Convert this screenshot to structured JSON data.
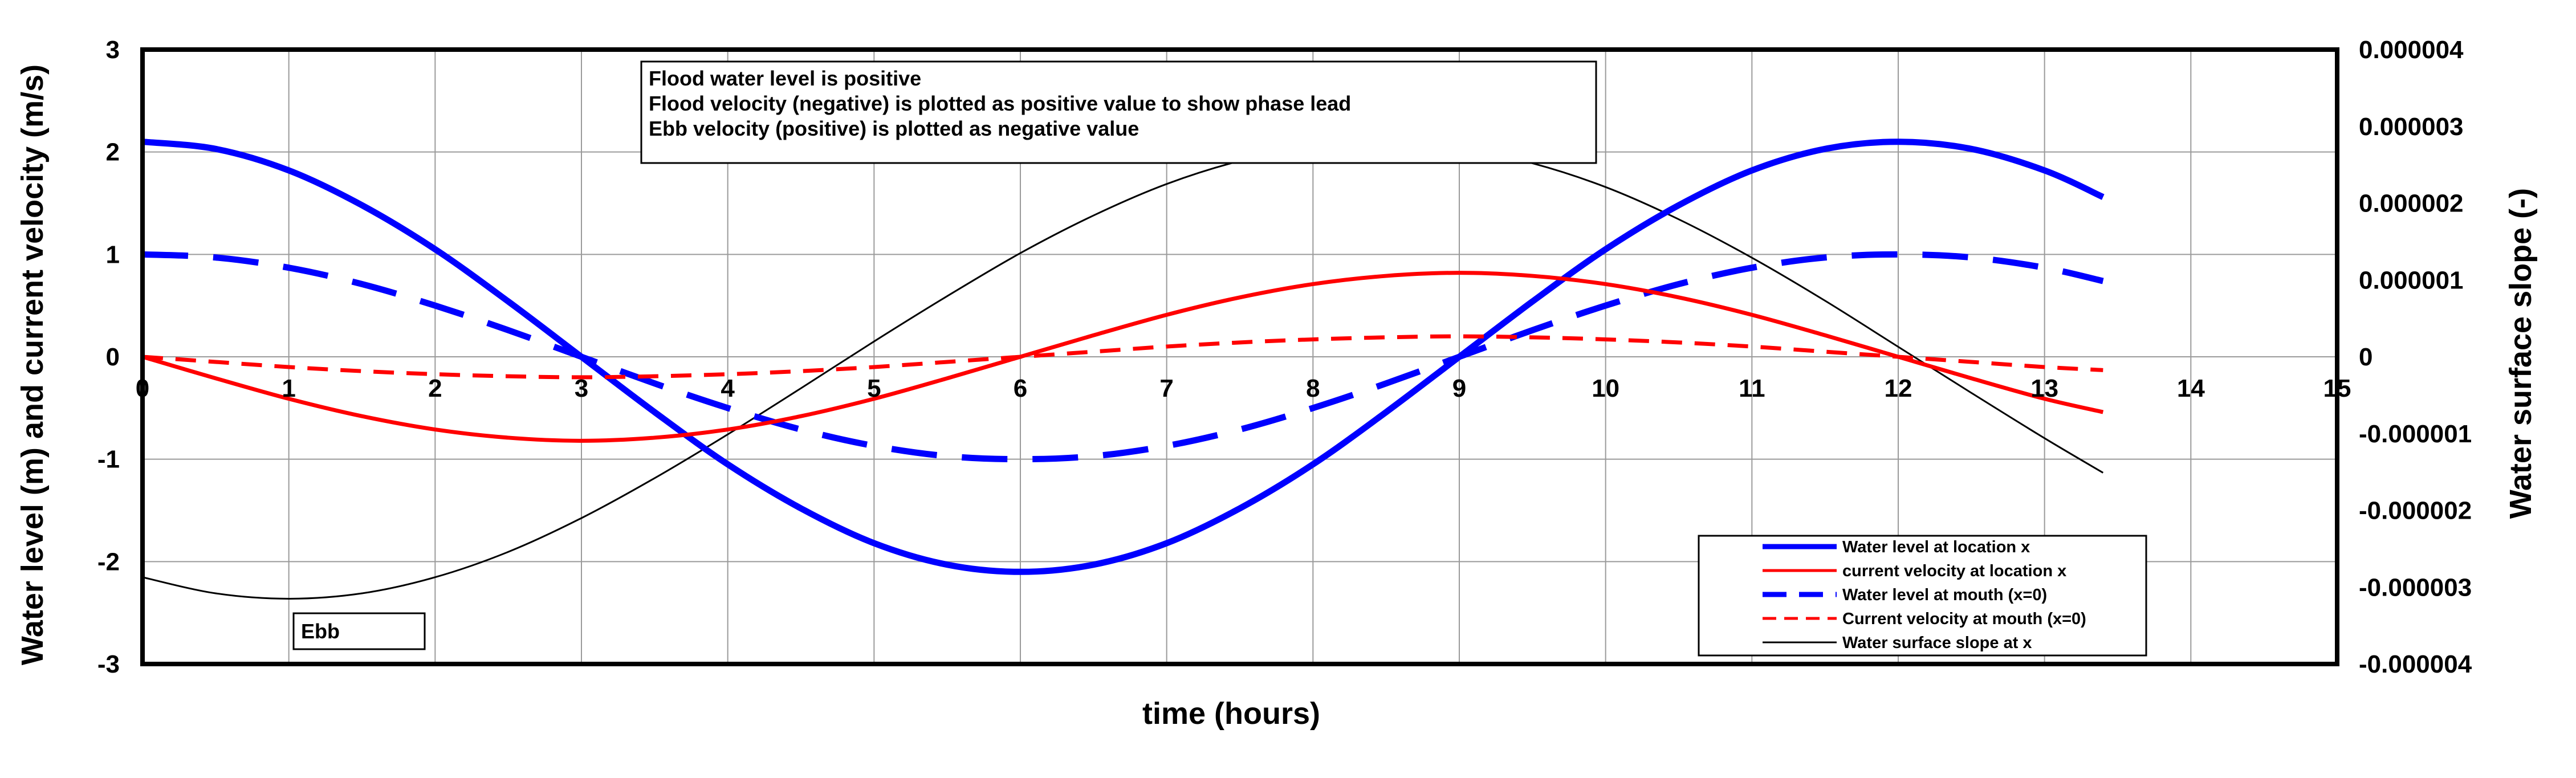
{
  "chart_data": {
    "type": "line",
    "title": "",
    "xlabel": "time (hours)",
    "ylabel_left": "Water level (m) and current velocity (m/s)",
    "ylabel_right": "Water surface slope (-)",
    "xlim": [
      0,
      15
    ],
    "ylim_left": [
      -3,
      3
    ],
    "ylim_right": [
      -4e-06,
      4e-06
    ],
    "x_ticks": [
      "0",
      "1",
      "2",
      "3",
      "4",
      "5",
      "6",
      "7",
      "8",
      "9",
      "10",
      "11",
      "12",
      "13",
      "14",
      "15"
    ],
    "y_ticks_left": [
      "3",
      "2",
      "1",
      "0",
      "-1",
      "-2",
      "-3"
    ],
    "y_ticks_right": [
      "0.000004",
      "0.000003",
      "0.000002",
      "0.000001",
      "0",
      "-0.000001",
      "-0.000002",
      "-0.000003",
      "-0.000004"
    ],
    "grid": true,
    "legend_position": "bottom-right",
    "notes": [
      "Flood water level is positive",
      "Flood velocity (negative) is plotted as positive value to show phase lead",
      "Ebb velocity (positive) is plotted as negative value"
    ],
    "annotation": "Ebb",
    "x": [
      0,
      0.5,
      1,
      1.5,
      2,
      2.5,
      3,
      3.5,
      4,
      4.5,
      5,
      5.5,
      6,
      6.5,
      7,
      7.5,
      8,
      8.5,
      9,
      9.5,
      10,
      10.5,
      11,
      11.5,
      12,
      12.5,
      13,
      13.4
    ],
    "series": [
      {
        "name": "Water level at location x",
        "axis": "left",
        "color": "#0000ff",
        "style": "solid-thick",
        "values": [
          2.1,
          2.03,
          1.82,
          1.48,
          1.05,
          0.54,
          0.0,
          -0.54,
          -1.05,
          -1.48,
          -1.82,
          -2.03,
          -2.1,
          -2.03,
          -1.82,
          -1.48,
          -1.05,
          -0.54,
          0.0,
          0.54,
          1.05,
          1.48,
          1.82,
          2.03,
          2.1,
          2.03,
          1.82,
          1.56
        ]
      },
      {
        "name": "current velocity at location x",
        "axis": "left",
        "color": "#ff0000",
        "style": "solid",
        "values": [
          0.0,
          -0.21,
          -0.41,
          -0.58,
          -0.71,
          -0.79,
          -0.82,
          -0.79,
          -0.71,
          -0.58,
          -0.41,
          -0.21,
          0.0,
          0.21,
          0.41,
          0.58,
          0.71,
          0.79,
          0.82,
          0.79,
          0.71,
          0.58,
          0.41,
          0.21,
          0.0,
          -0.21,
          -0.41,
          -0.54
        ]
      },
      {
        "name": "Water level at mouth (x=0)",
        "axis": "left",
        "color": "#0000ff",
        "style": "dashed-thick",
        "values": [
          1.0,
          0.97,
          0.87,
          0.71,
          0.5,
          0.26,
          0.0,
          -0.26,
          -0.5,
          -0.71,
          -0.87,
          -0.97,
          -1.0,
          -0.97,
          -0.87,
          -0.71,
          -0.5,
          -0.26,
          0.0,
          0.26,
          0.5,
          0.71,
          0.87,
          0.97,
          1.0,
          0.97,
          0.87,
          0.74
        ]
      },
      {
        "name": "Current velocity at mouth (x=0)",
        "axis": "left",
        "color": "#ff0000",
        "style": "dashed",
        "values": [
          0.0,
          -0.05,
          -0.1,
          -0.14,
          -0.17,
          -0.19,
          -0.2,
          -0.19,
          -0.17,
          -0.14,
          -0.1,
          -0.05,
          0.0,
          0.05,
          0.1,
          0.14,
          0.17,
          0.19,
          0.2,
          0.19,
          0.17,
          0.14,
          0.1,
          0.05,
          0.0,
          -0.05,
          -0.1,
          -0.13
        ]
      },
      {
        "name": "Water surface slope at x",
        "axis": "right",
        "color": "#000000",
        "style": "thin",
        "values": [
          -2.87e-06,
          -3.08e-06,
          -3.15e-06,
          -3.08e-06,
          -2.87e-06,
          -2.54e-06,
          -2.1e-06,
          -1.58e-06,
          -1.01e-06,
          -4.1e-07,
          2e-07,
          7.9e-07,
          1.35e-06,
          1.84e-06,
          2.25e-06,
          2.55e-06,
          2.74e-06,
          2.79e-06,
          2.72e-06,
          2.52e-06,
          2.21e-06,
          1.79e-06,
          1.29e-06,
          7.3e-07,
          1.3e-07,
          -4.7e-07,
          -1.06e-06,
          -1.51e-06
        ]
      }
    ]
  }
}
